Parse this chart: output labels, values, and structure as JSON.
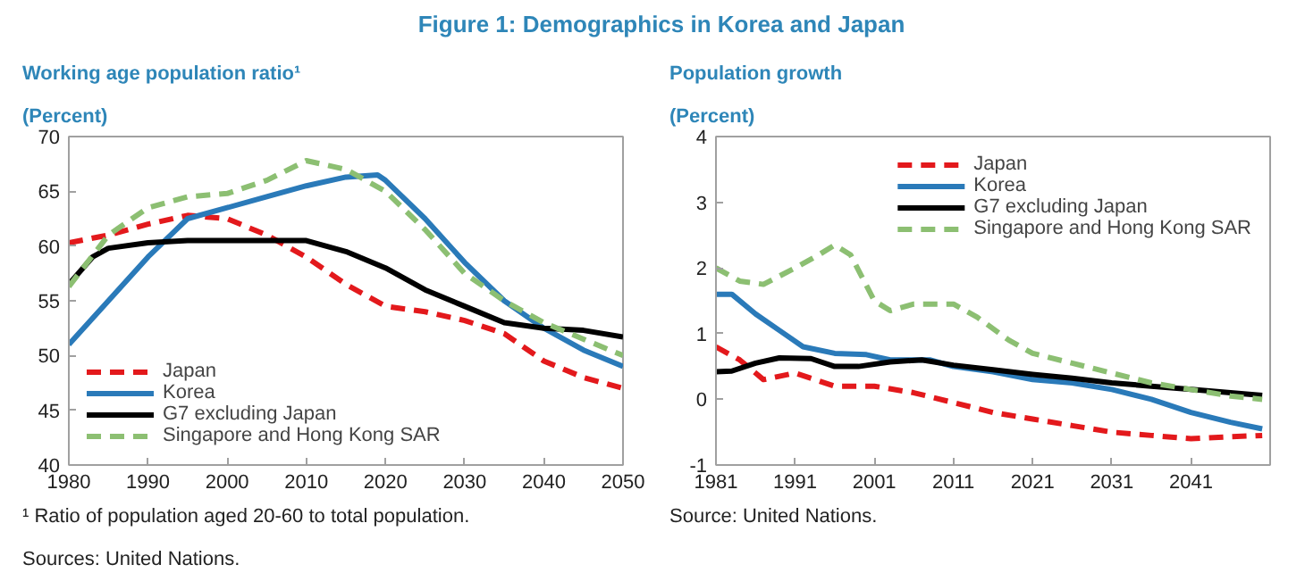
{
  "chart_data": [
    {
      "type": "line",
      "title": "Figure 1: Demographics in Korea and Japan",
      "subtitle": "Working age population ratio¹",
      "ylabel": "(Percent)",
      "xlim": [
        1980,
        2050
      ],
      "xticks": [
        1980,
        1990,
        2000,
        2010,
        2020,
        2030,
        2040,
        2050
      ],
      "ylim": [
        40,
        70
      ],
      "yticks": [
        40,
        45,
        50,
        55,
        60,
        65,
        70
      ],
      "grid": false,
      "legend": "bottom left",
      "annotations": [
        "¹ Ratio of population aged 20-60 to total population.",
        "Sources: United Nations."
      ],
      "series": [
        {
          "name": "Japan",
          "color": "#e3191c",
          "line_style": "dashed",
          "x": [
            1980,
            1985,
            1990,
            1995,
            2000,
            2005,
            2010,
            2015,
            2020,
            2025,
            2030,
            2035,
            2040,
            2045,
            2050
          ],
          "values": [
            60.3,
            61,
            62,
            62.8,
            62.5,
            61,
            59,
            56.5,
            54.5,
            54,
            53.2,
            52,
            49.5,
            48,
            47
          ]
        },
        {
          "name": "Korea",
          "color": "#2a7ab9",
          "line_style": "solid",
          "x": [
            1980,
            1985,
            1990,
            1995,
            2000,
            2005,
            2010,
            2015,
            2019,
            2020,
            2025,
            2030,
            2035,
            2040,
            2045,
            2050
          ],
          "values": [
            51,
            55,
            59,
            62.5,
            63.5,
            64.5,
            65.5,
            66.3,
            66.5,
            66,
            62.5,
            58.5,
            55,
            52.5,
            50.5,
            49
          ]
        },
        {
          "name": "G7 excluding Japan",
          "color": "#000000",
          "line_style": "solid",
          "x": [
            1980,
            1983,
            1985,
            1990,
            1995,
            2000,
            2005,
            2010,
            2015,
            2020,
            2025,
            2030,
            2035,
            2040,
            2045,
            2050
          ],
          "values": [
            56.5,
            59,
            59.8,
            60.3,
            60.5,
            60.5,
            60.5,
            60.5,
            59.5,
            58,
            56,
            54.5,
            53,
            52.5,
            52.3,
            51.7
          ]
        },
        {
          "name": "Singapore and Hong Kong SAR",
          "color": "#8cbf72",
          "line_style": "dashed",
          "x": [
            1980,
            1985,
            1990,
            1995,
            2000,
            2005,
            2010,
            2015,
            2020,
            2025,
            2030,
            2035,
            2040,
            2045,
            2050
          ],
          "values": [
            56.3,
            61,
            63.5,
            64.5,
            64.8,
            66,
            67.8,
            67,
            65,
            61.5,
            57.5,
            55,
            53,
            51.5,
            50
          ]
        }
      ]
    },
    {
      "type": "line",
      "subtitle": "Population growth",
      "ylabel": "(Percent)",
      "xlim": [
        1981,
        2051
      ],
      "xticks": [
        1981,
        1991,
        2001,
        2011,
        2021,
        2031,
        2041
      ],
      "ylim": [
        -1,
        4
      ],
      "yticks": [
        -1,
        0,
        1,
        2,
        3,
        4
      ],
      "grid": false,
      "legend": "top right",
      "annotations": [
        "Source: United Nations."
      ],
      "series": [
        {
          "name": "Japan",
          "color": "#e3191c",
          "line_style": "dashed",
          "x": [
            1981,
            1984,
            1987,
            1991,
            1996,
            2001,
            2006,
            2011,
            2016,
            2021,
            2026,
            2031,
            2036,
            2041,
            2046,
            2050
          ],
          "values": [
            0.8,
            0.6,
            0.3,
            0.4,
            0.2,
            0.2,
            0.1,
            -0.05,
            -0.2,
            -0.3,
            -0.4,
            -0.5,
            -0.55,
            -0.6,
            -0.57,
            -0.55
          ]
        },
        {
          "name": "Korea",
          "color": "#2a7ab9",
          "line_style": "solid",
          "x": [
            1981,
            1983,
            1986,
            1989,
            1992,
            1996,
            2000,
            2003,
            2006,
            2008,
            2011,
            2016,
            2021,
            2026,
            2031,
            2036,
            2041,
            2046,
            2050
          ],
          "values": [
            1.6,
            1.6,
            1.3,
            1.05,
            0.8,
            0.7,
            0.68,
            0.6,
            0.6,
            0.6,
            0.5,
            0.42,
            0.3,
            0.25,
            0.15,
            0.0,
            -0.2,
            -0.35,
            -0.45
          ]
        },
        {
          "name": "G7 excluding Japan",
          "color": "#000000",
          "line_style": "solid",
          "x": [
            1981,
            1983,
            1986,
            1989,
            1993,
            1996,
            1999,
            2003,
            2007,
            2011,
            2016,
            2021,
            2026,
            2031,
            2036,
            2041,
            2046,
            2050
          ],
          "values": [
            0.42,
            0.43,
            0.55,
            0.63,
            0.62,
            0.5,
            0.5,
            0.57,
            0.6,
            0.52,
            0.45,
            0.38,
            0.32,
            0.25,
            0.2,
            0.15,
            0.1,
            0.06
          ]
        },
        {
          "name": "Singapore and Hong Kong SAR",
          "color": "#8cbf72",
          "line_style": "dashed",
          "x": [
            1981,
            1984,
            1987,
            1991,
            1994,
            1996,
            1998,
            2001,
            2003,
            2006,
            2011,
            2014,
            2018,
            2021,
            2026,
            2031,
            2036,
            2041,
            2046,
            2050
          ],
          "values": [
            2.0,
            1.8,
            1.75,
            2.0,
            2.2,
            2.35,
            2.2,
            1.5,
            1.35,
            1.45,
            1.45,
            1.25,
            0.9,
            0.7,
            0.55,
            0.4,
            0.25,
            0.15,
            0.05,
            0.0
          ]
        }
      ]
    }
  ]
}
